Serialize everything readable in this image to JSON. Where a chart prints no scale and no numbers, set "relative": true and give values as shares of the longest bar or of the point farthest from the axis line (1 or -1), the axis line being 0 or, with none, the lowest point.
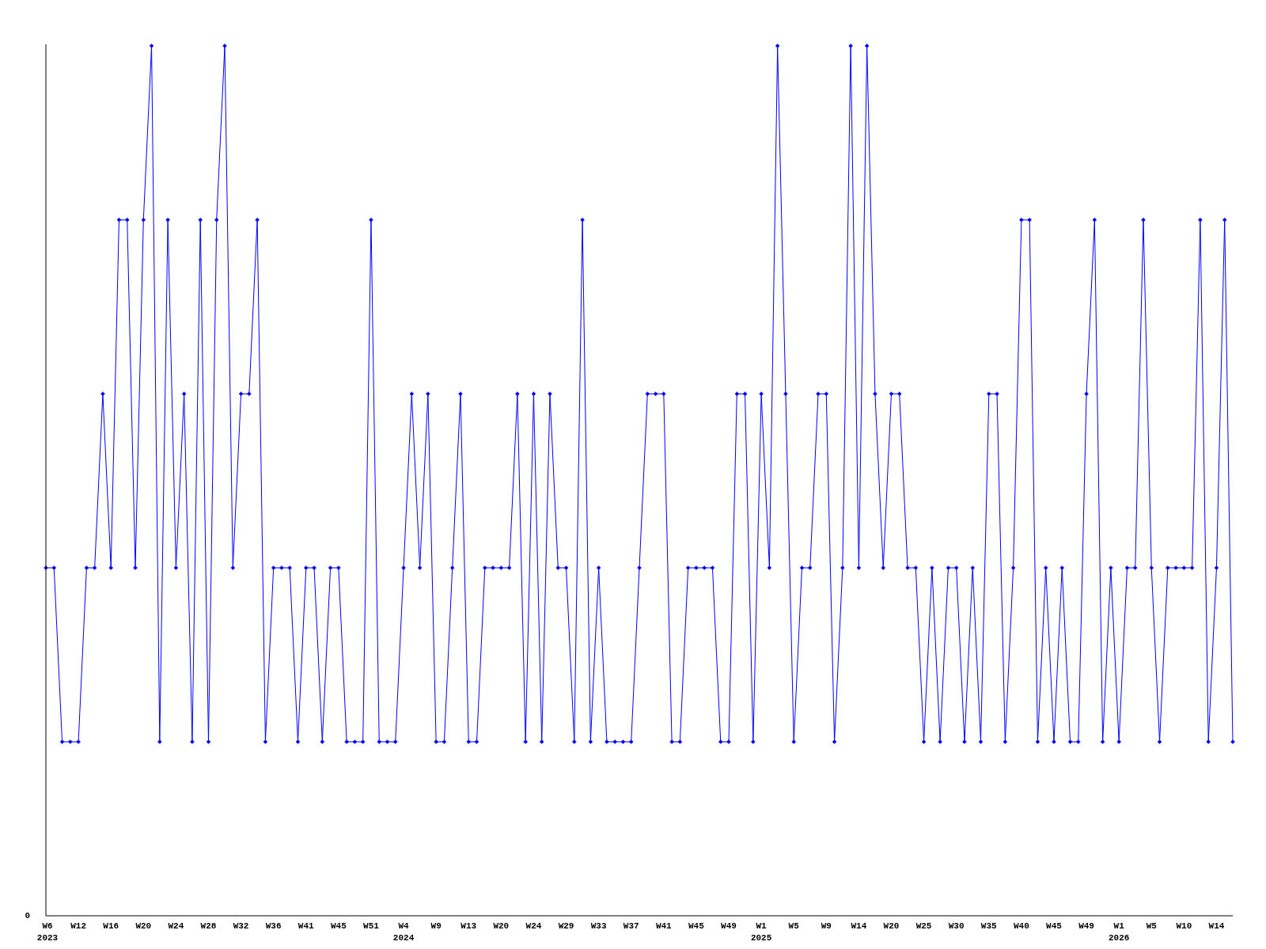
{
  "chart_data": {
    "type": "line",
    "relative": true,
    "marker": "diamond",
    "line_style": "solid",
    "annotations": [
      "0"
    ],
    "categories": [
      "W6\n2023",
      null,
      null,
      null,
      "W12",
      null,
      null,
      null,
      "W16",
      null,
      null,
      null,
      "W20",
      null,
      null,
      null,
      "W24",
      null,
      null,
      null,
      "W28",
      null,
      null,
      null,
      "W32",
      null,
      null,
      null,
      "W36",
      null,
      null,
      null,
      "W41",
      null,
      null,
      null,
      "W45",
      null,
      null,
      null,
      "W51",
      null,
      null,
      null,
      "W4\n2024",
      null,
      null,
      null,
      "W9",
      null,
      null,
      null,
      "W13",
      null,
      null,
      null,
      "W20",
      null,
      null,
      null,
      "W24",
      null,
      null,
      null,
      "W29",
      null,
      null,
      null,
      "W33",
      null,
      null,
      null,
      "W37",
      null,
      null,
      null,
      "W41",
      null,
      null,
      null,
      "W45",
      null,
      null,
      null,
      "W49",
      null,
      null,
      null,
      "W1\n2025",
      null,
      null,
      null,
      "W5",
      null,
      null,
      null,
      "W9",
      null,
      null,
      null,
      "W14",
      null,
      null,
      null,
      "W20",
      null,
      null,
      null,
      "W25",
      null,
      null,
      null,
      "W30",
      null,
      null,
      null,
      "W35",
      null,
      null,
      null,
      "W40",
      null,
      null,
      null,
      "W45",
      null,
      null,
      null,
      "W49",
      null,
      null,
      null,
      "W1\n2026",
      null,
      null,
      null,
      "W5",
      null,
      null,
      null,
      "W10",
      null,
      null,
      null,
      "W14",
      null,
      null
    ],
    "series": [
      {
        "color": "#0000ff",
        "values": [
          0.4,
          0.4,
          0.2,
          0.2,
          0.2,
          0.4,
          0.4,
          0.6,
          0.4,
          0.8,
          0.8,
          0.4,
          0.8,
          1,
          0.2,
          0.8,
          0.4,
          0.6,
          0.2,
          0.8,
          0.2,
          0.8,
          1,
          0.4,
          0.6,
          0.6,
          0.8,
          0.2,
          0.4,
          0.4,
          0.4,
          0.2,
          0.4,
          0.4,
          0.2,
          0.4,
          0.4,
          0.2,
          0.2,
          0.2,
          0.8,
          0.2,
          0.2,
          0.2,
          0.4,
          0.6,
          0.4,
          0.6,
          0.2,
          0.2,
          0.4,
          0.6,
          0.2,
          0.2,
          0.4,
          0.4,
          0.4,
          0.4,
          0.6,
          0.2,
          0.6,
          0.2,
          0.6,
          0.4,
          0.4,
          0.2,
          0.8,
          0.2,
          0.4,
          0.2,
          0.2,
          0.2,
          0.2,
          0.4,
          0.6,
          0.6,
          0.6,
          0.2,
          0.2,
          0.4,
          0.4,
          0.4,
          0.4,
          0.2,
          0.2,
          0.6,
          0.6,
          0.2,
          0.6,
          0.4,
          1,
          0.6,
          0.2,
          0.4,
          0.4,
          0.6,
          0.6,
          0.2,
          0.4,
          1,
          0.4,
          1,
          0.6,
          0.4,
          0.6,
          0.6,
          0.4,
          0.4,
          0.2,
          0.4,
          0.2,
          0.4,
          0.4,
          0.2,
          0.4,
          0.2,
          0.6,
          0.6,
          0.2,
          0.4,
          0.8,
          0.8,
          0.2,
          0.4,
          0.2,
          0.4,
          0.2,
          0.2,
          0.6,
          0.8,
          0.2,
          0.4,
          0.2,
          0.4,
          0.4,
          0.8,
          0.4,
          0.2,
          0.4,
          0.4,
          0.4,
          0.4,
          0.8,
          0.2,
          0.4,
          0.8,
          0.2
        ]
      }
    ]
  }
}
